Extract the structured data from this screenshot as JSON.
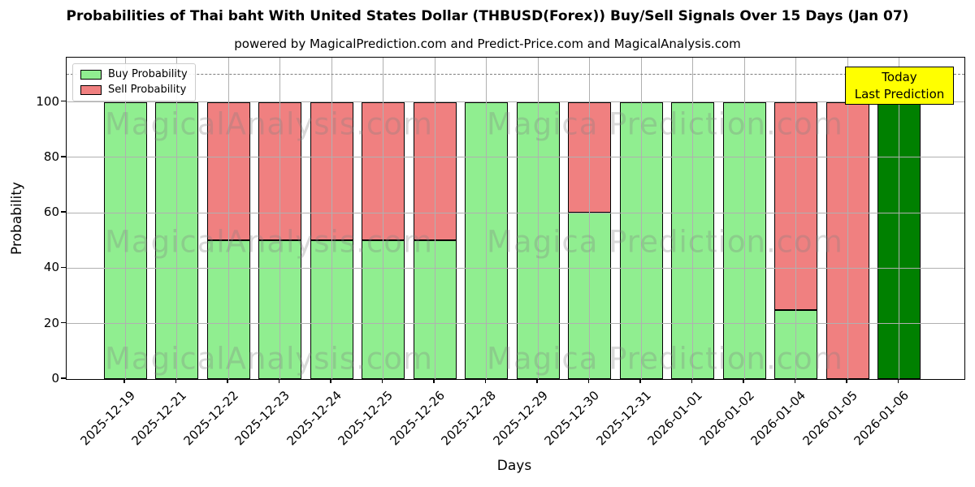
{
  "chart_data": {
    "type": "bar",
    "stacked": true,
    "title": "Probabilities of Thai baht With United States Dollar (THBUSD(Forex)) Buy/Sell Signals Over 15 Days (Jan 07)",
    "subtitle": "powered by MagicalPrediction.com and Predict-Price.com and MagicalAnalysis.com",
    "xlabel": "Days",
    "ylabel": "Probability",
    "ylim": [
      0,
      116
    ],
    "yticks": [
      0,
      20,
      40,
      60,
      80,
      100
    ],
    "grid": true,
    "dashed_threshold": 110,
    "categories": [
      "2025-12-19",
      "2025-12-21",
      "2025-12-22",
      "2025-12-23",
      "2025-12-24",
      "2025-12-25",
      "2025-12-26",
      "2025-12-28",
      "2025-12-29",
      "2025-12-30",
      "2025-12-31",
      "2026-01-01",
      "2026-01-02",
      "2026-01-04",
      "2026-01-05",
      "2026-01-06"
    ],
    "series": [
      {
        "name": "Buy Probability",
        "color": "#90EE90",
        "values": [
          100,
          100,
          50,
          50,
          50,
          50,
          50,
          100,
          100,
          60,
          100,
          100,
          100,
          25,
          0,
          100
        ]
      },
      {
        "name": "Sell Probability",
        "color": "#F08080",
        "values": [
          0,
          0,
          50,
          50,
          50,
          50,
          50,
          0,
          0,
          40,
          0,
          0,
          0,
          75,
          100,
          0
        ]
      }
    ],
    "today_bar": {
      "index": 15,
      "category": "2026-01-06",
      "color": "#008000",
      "value": 100
    },
    "legend_position": "upper left",
    "annotation_box": {
      "lines": [
        "Today",
        "Last Prediction"
      ],
      "bg_color": "#FFFF00"
    },
    "watermarks": {
      "left": "MagicalAnalysis.com",
      "right": "Magica Prediction.com",
      "rows": 3
    },
    "colors": {
      "grid": "#b0b0b0",
      "dashed_line": "#7f7f7f",
      "bar_edge": "#000000"
    }
  }
}
